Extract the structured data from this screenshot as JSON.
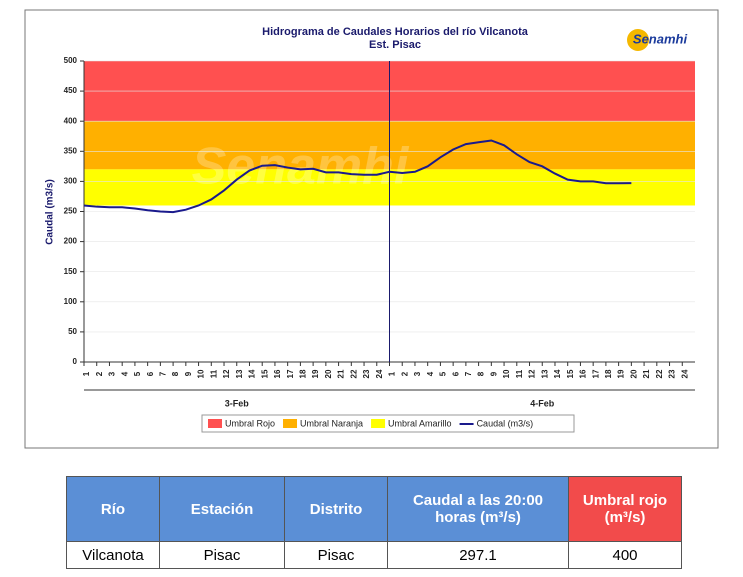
{
  "chart_data": {
    "type": "line",
    "title": "Hidrograma de Caudales Horarios del río Vilcanota",
    "subtitle": "Est. Pisac",
    "logo": "Senamhi",
    "ylabel": "Caudal  (m3/s)",
    "categories": [
      "1",
      "2",
      "3",
      "4",
      "5",
      "6",
      "7",
      "8",
      "9",
      "10",
      "11",
      "12",
      "13",
      "14",
      "15",
      "16",
      "17",
      "18",
      "19",
      "20",
      "21",
      "22",
      "23",
      "24",
      "1",
      "2",
      "3",
      "4",
      "5",
      "6",
      "7",
      "8",
      "9",
      "10",
      "11",
      "12",
      "13",
      "14",
      "15",
      "16",
      "17",
      "18",
      "19",
      "20",
      "21",
      "22",
      "23",
      "24"
    ],
    "groups": [
      "3-Feb",
      "4-Feb"
    ],
    "bands": [
      {
        "name": "Umbral Rojo",
        "color": "#ff5050",
        "from": 400,
        "to": 500
      },
      {
        "name": "Umbral Naranja",
        "color": "#ffb000",
        "from": 320,
        "to": 400
      },
      {
        "name": "Umbral Amarillo",
        "color": "#ffff00",
        "from": 260,
        "to": 320
      }
    ],
    "series": [
      {
        "name": "Caudal (m3/s)",
        "color": "#1a1a8c",
        "values": [
          260,
          258,
          257,
          257,
          255,
          252,
          250,
          249,
          253,
          260,
          270,
          285,
          303,
          318,
          326,
          327,
          323,
          320,
          321,
          315,
          315,
          312,
          311,
          311,
          316,
          314,
          316,
          325,
          340,
          353,
          362,
          365,
          368,
          360,
          345,
          332,
          325,
          313,
          303,
          300,
          300,
          297,
          297,
          297.1,
          null,
          null,
          null,
          null
        ]
      }
    ],
    "ylim": [
      0,
      500
    ],
    "yticks": [
      0,
      50,
      100,
      150,
      200,
      250,
      300,
      350,
      400,
      450,
      500
    ],
    "grid": true
  },
  "table": {
    "header": [
      "Río",
      "Estación",
      "Distrito",
      "Caudal a las 20:00 horas (m³/s)",
      "Umbral rojo (m³/s)"
    ],
    "rows": [
      [
        "Vilcanota",
        "Pisac",
        "Pisac",
        "297.1",
        "400"
      ]
    ]
  }
}
